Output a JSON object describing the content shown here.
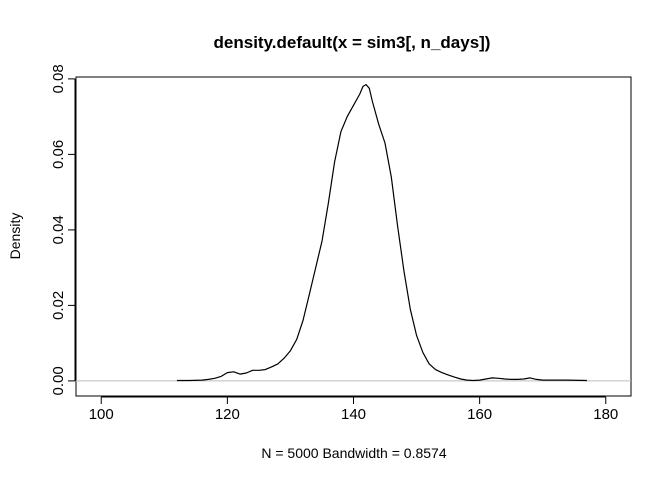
{
  "chart_data": {
    "type": "line",
    "title": "density.default(x = sim3[, n_days])",
    "xlabel": "N = 5000   Bandwidth = 0.8574",
    "ylabel": "Density",
    "xlim": [
      96,
      184
    ],
    "ylim": [
      -0.004,
      0.0805
    ],
    "x_ticks": [
      "100",
      "120",
      "140",
      "160",
      "180"
    ],
    "y_ticks": [
      "0.00",
      "0.02",
      "0.04",
      "0.06",
      "0.08"
    ],
    "zero_line": true,
    "zero_line_color": "#bebebe",
    "line_color": "#000000",
    "series": [
      {
        "x": [
          112,
          114,
          116,
          117,
          118,
          119,
          120,
          121,
          122,
          123,
          124,
          125,
          126,
          127,
          128,
          129,
          130,
          131,
          132,
          133,
          134,
          135,
          136,
          137,
          138,
          139,
          140,
          141,
          141.5,
          142,
          142.5,
          143,
          144,
          145,
          146,
          147,
          148,
          149,
          150,
          151,
          152,
          153,
          154,
          155,
          156,
          157,
          158,
          159,
          160,
          161,
          162,
          163,
          164,
          165,
          166,
          167,
          168,
          169,
          170,
          172,
          174,
          177
        ],
        "y": [
          0.0001,
          0.0001,
          0.0002,
          0.0004,
          0.0007,
          0.0012,
          0.0022,
          0.0024,
          0.0018,
          0.0021,
          0.0028,
          0.0028,
          0.003,
          0.0037,
          0.0045,
          0.006,
          0.008,
          0.011,
          0.016,
          0.023,
          0.03,
          0.037,
          0.047,
          0.058,
          0.066,
          0.07,
          0.073,
          0.076,
          0.078,
          0.0785,
          0.0775,
          0.074,
          0.068,
          0.063,
          0.054,
          0.041,
          0.029,
          0.019,
          0.012,
          0.0075,
          0.0045,
          0.003,
          0.0022,
          0.0016,
          0.001,
          0.0005,
          0.0002,
          0.0001,
          0.0002,
          0.0005,
          0.0008,
          0.0007,
          0.0005,
          0.0004,
          0.0004,
          0.0005,
          0.0008,
          0.0004,
          0.0002,
          0.0002,
          0.0002,
          0.0001
        ]
      }
    ]
  }
}
